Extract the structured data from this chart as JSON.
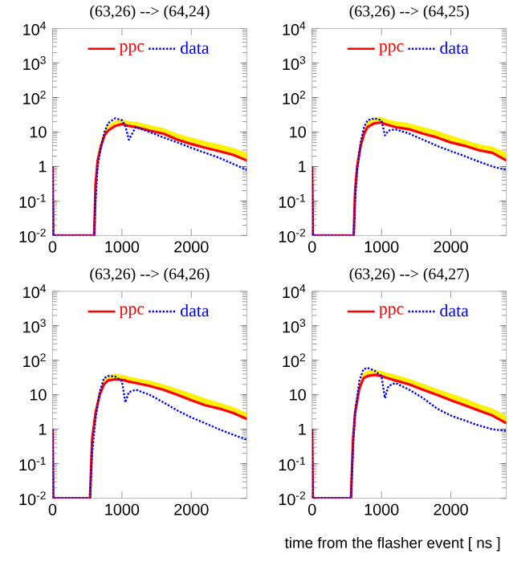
{
  "chart_data": [
    {
      "type": "line",
      "title": "(63,26) --> (64,24)",
      "log": "y",
      "legend": "top",
      "xlim": [
        0,
        2800
      ],
      "xticks": [
        0,
        1000,
        2000
      ],
      "ylim": [
        0.01,
        10000
      ],
      "yticks": [
        {
          "value": 0.01,
          "label": "10$^{-2}$"
        },
        {
          "value": 0.1,
          "label": "10$^{-1}$"
        },
        1,
        10,
        {
          "value": 100,
          "label": "10$^{2}$"
        },
        {
          "value": 1000,
          "label": "10$^{3}$"
        },
        {
          "value": 10000,
          "label": "10$^{4}$"
        }
      ],
      "x": [
        0,
        10,
        600,
        620,
        650,
        700,
        750,
        800,
        900,
        1000,
        1050,
        1100,
        1200,
        1400,
        1600,
        1800,
        2000,
        2200,
        2400,
        2600,
        2800
      ],
      "series": [
        {
          "name": "ppc",
          "color": "#ff0000",
          "line_style": "solid",
          "values": [
            1,
            0.01,
            0.01,
            0.3,
            1.5,
            4,
            8,
            11,
            15,
            17,
            16,
            15,
            14,
            11,
            9,
            6,
            4.5,
            3.5,
            2.8,
            2.2,
            1.5
          ],
          "lower": [
            1,
            0.01,
            0.01,
            0.3,
            1.5,
            4,
            8,
            11,
            15,
            17,
            16,
            15,
            14,
            11,
            9,
            6,
            4.5,
            3.5,
            2.8,
            2.2,
            1.5
          ],
          "upper": [
            1,
            0.01,
            0.01,
            0.5,
            2.5,
            6,
            12,
            16,
            21,
            24,
            22,
            21,
            20,
            16,
            13,
            9,
            7,
            5.5,
            4.5,
            3.5,
            2.5
          ]
        },
        {
          "name": "data",
          "color": "#0000ff",
          "line_style": "dotted",
          "values": [
            1,
            0.01,
            0.01,
            0.1,
            1,
            4,
            10,
            18,
            25,
            22,
            15,
            6,
            14,
            10,
            7,
            5,
            3.5,
            2.5,
            1.8,
            1.2,
            0.8
          ]
        }
      ]
    },
    {
      "type": "line",
      "title": "(63,26) --> (64,25)",
      "log": "y",
      "legend": "top",
      "xlim": [
        0,
        2800
      ],
      "xticks": [
        0,
        1000,
        2000
      ],
      "ylim": [
        0.01,
        10000
      ],
      "yticks": [
        {
          "value": 0.01,
          "label": "10$^{-2}$"
        },
        {
          "value": 0.1,
          "label": "10$^{-1}$"
        },
        1,
        10,
        {
          "value": 100,
          "label": "10$^{2}$"
        },
        {
          "value": 1000,
          "label": "10$^{3}$"
        },
        {
          "value": 10000,
          "label": "10$^{4}$"
        }
      ],
      "x": [
        0,
        10,
        600,
        620,
        650,
        700,
        750,
        800,
        900,
        1000,
        1050,
        1100,
        1200,
        1400,
        1600,
        1800,
        2000,
        2200,
        2400,
        2600,
        2800
      ],
      "series": [
        {
          "name": "ppc",
          "color": "#ff0000",
          "line_style": "solid",
          "values": [
            1,
            0.01,
            0.01,
            0.2,
            1,
            4,
            9,
            14,
            18,
            19,
            17,
            16,
            14,
            12,
            9,
            7,
            5,
            4,
            3,
            2.5,
            1.5
          ],
          "lower": [
            1,
            0.01,
            0.01,
            0.2,
            1,
            4,
            9,
            14,
            18,
            19,
            17,
            16,
            14,
            12,
            9,
            7,
            5,
            4,
            3,
            2.5,
            1.5
          ],
          "upper": [
            1,
            0.01,
            0.01,
            0.4,
            2,
            6,
            13,
            20,
            26,
            27,
            25,
            23,
            21,
            18,
            14,
            11,
            8,
            6,
            4.5,
            3.8,
            2.5
          ]
        },
        {
          "name": "data",
          "color": "#0000ff",
          "line_style": "dotted",
          "values": [
            1,
            0.01,
            0.01,
            0.1,
            0.8,
            5,
            14,
            22,
            25,
            22,
            8,
            11,
            12,
            9,
            6,
            4,
            2.8,
            2,
            1.4,
            1,
            0.8
          ]
        }
      ]
    },
    {
      "type": "line",
      "title": "(63,26) --> (64,26)",
      "log": "y",
      "legend": "top",
      "xlim": [
        0,
        2800
      ],
      "xticks": [
        0,
        1000,
        2000
      ],
      "ylim": [
        0.01,
        10000
      ],
      "yticks": [
        {
          "value": 0.01,
          "label": "10$^{-2}$"
        },
        {
          "value": 0.1,
          "label": "10$^{-1}$"
        },
        1,
        10,
        {
          "value": 100,
          "label": "10$^{2}$"
        },
        {
          "value": 1000,
          "label": "10$^{3}$"
        },
        {
          "value": 10000,
          "label": "10$^{4}$"
        }
      ],
      "x": [
        0,
        10,
        540,
        570,
        620,
        680,
        740,
        800,
        900,
        1000,
        1050,
        1100,
        1200,
        1400,
        1600,
        1800,
        2000,
        2200,
        2400,
        2600,
        2800
      ],
      "series": [
        {
          "name": "ppc",
          "color": "#ff0000",
          "line_style": "solid",
          "values": [
            1,
            0.01,
            0.01,
            0.5,
            3,
            10,
            20,
            26,
            28,
            27,
            26,
            24,
            22,
            18,
            14,
            10,
            7,
            5,
            4,
            3,
            2
          ],
          "lower": [
            1,
            0.01,
            0.01,
            0.5,
            3,
            10,
            20,
            26,
            28,
            27,
            26,
            24,
            22,
            18,
            14,
            10,
            7,
            5,
            4,
            3,
            2
          ],
          "upper": [
            1,
            0.01,
            0.01,
            0.8,
            5,
            15,
            28,
            36,
            40,
            38,
            36,
            34,
            31,
            26,
            20,
            15,
            11,
            8,
            6,
            4.5,
            3
          ]
        },
        {
          "name": "data",
          "color": "#0000ff",
          "line_style": "dotted",
          "values": [
            1,
            0.01,
            0.01,
            0.2,
            2,
            12,
            30,
            35,
            34,
            25,
            6,
            12,
            14,
            10,
            6,
            3.5,
            2.2,
            1.5,
            1,
            0.7,
            0.5
          ]
        }
      ]
    },
    {
      "type": "line",
      "title": "(63,26) --> (64,27)",
      "xlabel": "time from the flasher event [ ns ]",
      "log": "y",
      "legend": "top",
      "xlim": [
        0,
        2800
      ],
      "xticks": [
        0,
        1000,
        2000
      ],
      "ylim": [
        0.01,
        10000
      ],
      "yticks": [
        {
          "value": 0.01,
          "label": "10$^{-2}$"
        },
        {
          "value": 0.1,
          "label": "10$^{-1}$"
        },
        1,
        10,
        {
          "value": 100,
          "label": "10$^{2}$"
        },
        {
          "value": 1000,
          "label": "10$^{3}$"
        },
        {
          "value": 10000,
          "label": "10$^{4}$"
        }
      ],
      "x": [
        0,
        10,
        560,
        590,
        620,
        680,
        740,
        800,
        900,
        1000,
        1050,
        1100,
        1200,
        1400,
        1600,
        1800,
        2000,
        2200,
        2400,
        2600,
        2800
      ],
      "series": [
        {
          "name": "ppc",
          "color": "#ff0000",
          "line_style": "solid",
          "values": [
            1,
            0.01,
            0.01,
            0.5,
            3,
            15,
            30,
            35,
            38,
            35,
            32,
            30,
            26,
            20,
            14,
            10,
            7,
            5,
            3.5,
            2.5,
            1.5
          ],
          "lower": [
            1,
            0.01,
            0.01,
            0.5,
            3,
            15,
            30,
            35,
            38,
            35,
            32,
            30,
            26,
            20,
            14,
            10,
            7,
            5,
            3.5,
            2.5,
            1.5
          ],
          "upper": [
            1,
            0.01,
            0.01,
            0.8,
            5,
            22,
            42,
            50,
            54,
            50,
            46,
            43,
            38,
            29,
            21,
            15,
            11,
            8,
            5.5,
            4,
            2.5
          ]
        },
        {
          "name": "data",
          "color": "#0000ff",
          "line_style": "dotted",
          "values": [
            1,
            0.01,
            0.01,
            0.3,
            3,
            25,
            55,
            60,
            50,
            35,
            8,
            18,
            22,
            14,
            8,
            4,
            2.5,
            1.8,
            1.3,
            1,
            0.9
          ]
        }
      ]
    }
  ]
}
